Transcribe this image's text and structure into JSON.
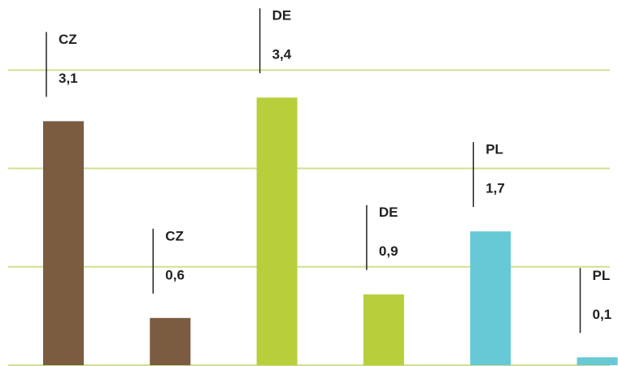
{
  "chart_data": {
    "type": "bar",
    "categories": [
      "CZ",
      "CZ",
      "DE",
      "DE",
      "PL",
      "PL"
    ],
    "values": [
      3.1,
      0.6,
      3.4,
      0.9,
      1.7,
      0.1
    ],
    "value_labels": [
      "3,1",
      "0,6",
      "3,4",
      "0,9",
      "1,7",
      "0,1"
    ],
    "colors": [
      "#7b5c40",
      "#7b5c40",
      "#b8cf3b",
      "#b8cf3b",
      "#67c9d5",
      "#67c9d5"
    ],
    "ylim": [
      0,
      4.64
    ],
    "grid_lines": [
      0,
      1.25,
      2.5,
      3.75
    ],
    "grid": true
  }
}
